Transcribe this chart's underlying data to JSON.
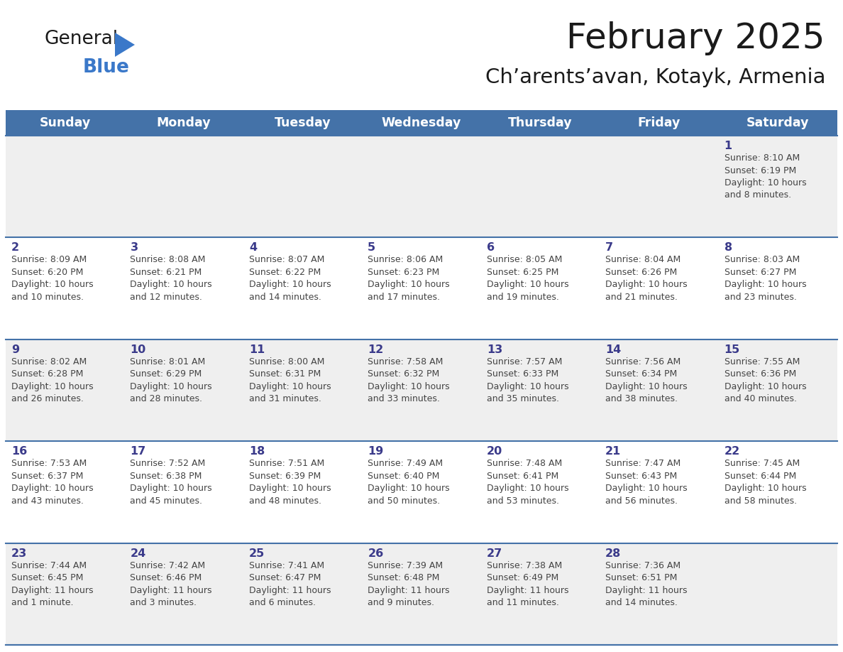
{
  "title": "February 2025",
  "subtitle": "Ch’arents’avan, Kotayk, Armenia",
  "days_of_week": [
    "Sunday",
    "Monday",
    "Tuesday",
    "Wednesday",
    "Thursday",
    "Friday",
    "Saturday"
  ],
  "header_bg": "#4472a8",
  "header_text": "#ffffff",
  "row_bg_odd": "#efefef",
  "row_bg_even": "#ffffff",
  "separator_color": "#4472a8",
  "day_number_color": "#3a3a8a",
  "cell_text_color": "#444444",
  "title_color": "#1a1a1a",
  "subtitle_color": "#1a1a1a",
  "logo_general_color": "#1a1a1a",
  "logo_blue_color": "#3a78c9",
  "logo_triangle_color": "#3a78c9",
  "calendar": [
    [
      null,
      null,
      null,
      null,
      null,
      null,
      {
        "day": 1,
        "sunrise": "8:10 AM",
        "sunset": "6:19 PM",
        "daylight": "10 hours and 8 minutes."
      }
    ],
    [
      {
        "day": 2,
        "sunrise": "8:09 AM",
        "sunset": "6:20 PM",
        "daylight": "10 hours and 10 minutes."
      },
      {
        "day": 3,
        "sunrise": "8:08 AM",
        "sunset": "6:21 PM",
        "daylight": "10 hours and 12 minutes."
      },
      {
        "day": 4,
        "sunrise": "8:07 AM",
        "sunset": "6:22 PM",
        "daylight": "10 hours and 14 minutes."
      },
      {
        "day": 5,
        "sunrise": "8:06 AM",
        "sunset": "6:23 PM",
        "daylight": "10 hours and 17 minutes."
      },
      {
        "day": 6,
        "sunrise": "8:05 AM",
        "sunset": "6:25 PM",
        "daylight": "10 hours and 19 minutes."
      },
      {
        "day": 7,
        "sunrise": "8:04 AM",
        "sunset": "6:26 PM",
        "daylight": "10 hours and 21 minutes."
      },
      {
        "day": 8,
        "sunrise": "8:03 AM",
        "sunset": "6:27 PM",
        "daylight": "10 hours and 23 minutes."
      }
    ],
    [
      {
        "day": 9,
        "sunrise": "8:02 AM",
        "sunset": "6:28 PM",
        "daylight": "10 hours and 26 minutes."
      },
      {
        "day": 10,
        "sunrise": "8:01 AM",
        "sunset": "6:29 PM",
        "daylight": "10 hours and 28 minutes."
      },
      {
        "day": 11,
        "sunrise": "8:00 AM",
        "sunset": "6:31 PM",
        "daylight": "10 hours and 31 minutes."
      },
      {
        "day": 12,
        "sunrise": "7:58 AM",
        "sunset": "6:32 PM",
        "daylight": "10 hours and 33 minutes."
      },
      {
        "day": 13,
        "sunrise": "7:57 AM",
        "sunset": "6:33 PM",
        "daylight": "10 hours and 35 minutes."
      },
      {
        "day": 14,
        "sunrise": "7:56 AM",
        "sunset": "6:34 PM",
        "daylight": "10 hours and 38 minutes."
      },
      {
        "day": 15,
        "sunrise": "7:55 AM",
        "sunset": "6:36 PM",
        "daylight": "10 hours and 40 minutes."
      }
    ],
    [
      {
        "day": 16,
        "sunrise": "7:53 AM",
        "sunset": "6:37 PM",
        "daylight": "10 hours and 43 minutes."
      },
      {
        "day": 17,
        "sunrise": "7:52 AM",
        "sunset": "6:38 PM",
        "daylight": "10 hours and 45 minutes."
      },
      {
        "day": 18,
        "sunrise": "7:51 AM",
        "sunset": "6:39 PM",
        "daylight": "10 hours and 48 minutes."
      },
      {
        "day": 19,
        "sunrise": "7:49 AM",
        "sunset": "6:40 PM",
        "daylight": "10 hours and 50 minutes."
      },
      {
        "day": 20,
        "sunrise": "7:48 AM",
        "sunset": "6:41 PM",
        "daylight": "10 hours and 53 minutes."
      },
      {
        "day": 21,
        "sunrise": "7:47 AM",
        "sunset": "6:43 PM",
        "daylight": "10 hours and 56 minutes."
      },
      {
        "day": 22,
        "sunrise": "7:45 AM",
        "sunset": "6:44 PM",
        "daylight": "10 hours and 58 minutes."
      }
    ],
    [
      {
        "day": 23,
        "sunrise": "7:44 AM",
        "sunset": "6:45 PM",
        "daylight": "11 hours and 1 minute."
      },
      {
        "day": 24,
        "sunrise": "7:42 AM",
        "sunset": "6:46 PM",
        "daylight": "11 hours and 3 minutes."
      },
      {
        "day": 25,
        "sunrise": "7:41 AM",
        "sunset": "6:47 PM",
        "daylight": "11 hours and 6 minutes."
      },
      {
        "day": 26,
        "sunrise": "7:39 AM",
        "sunset": "6:48 PM",
        "daylight": "11 hours and 9 minutes."
      },
      {
        "day": 27,
        "sunrise": "7:38 AM",
        "sunset": "6:49 PM",
        "daylight": "11 hours and 11 minutes."
      },
      {
        "day": 28,
        "sunrise": "7:36 AM",
        "sunset": "6:51 PM",
        "daylight": "11 hours and 14 minutes."
      },
      null
    ]
  ]
}
